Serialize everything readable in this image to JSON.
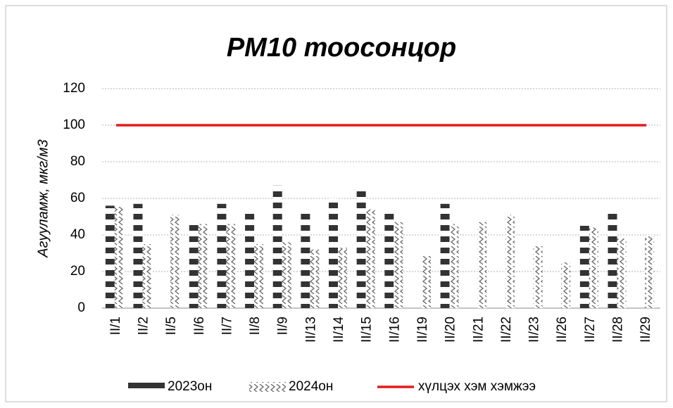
{
  "chart_data": {
    "type": "bar",
    "title": "PM10 тоосонцор",
    "y_label": "Агууламж,  мкг/м3",
    "categories": [
      "II/1",
      "II/2",
      "II/5",
      "II/6",
      "II/7",
      "II/8",
      "II/9",
      "II/13",
      "II/14",
      "II/15",
      "II/16",
      "II/19",
      "II/20",
      "II/21",
      "II/22",
      "II/23",
      "II/26",
      "II/27",
      "II/28",
      "II/29"
    ],
    "series": [
      {
        "name": "2023он",
        "type": "bar",
        "color": "#333333",
        "pattern": "checker",
        "values": [
          56,
          57,
          null,
          48,
          57,
          54,
          67,
          53,
          60,
          64,
          52,
          null,
          57,
          null,
          null,
          null,
          null,
          45,
          53,
          null
        ]
      },
      {
        "name": "2024он",
        "type": "bar",
        "color": "#555555",
        "pattern": "zigzag",
        "values": [
          56,
          35,
          51,
          46,
          46,
          35,
          36,
          32,
          33,
          54,
          47,
          29,
          46,
          47,
          51,
          34,
          25,
          44,
          38,
          40
        ]
      },
      {
        "name": "хүлцэх хэм хэмжээ",
        "type": "line",
        "color": "#e41a1c",
        "values": [
          100,
          100,
          100,
          100,
          100,
          100,
          100,
          100,
          100,
          100,
          100,
          100,
          100,
          100,
          100,
          100,
          100,
          100,
          100,
          100
        ]
      }
    ],
    "ylim": [
      0,
      120
    ],
    "yticks": [
      0,
      20,
      40,
      60,
      80,
      100,
      120
    ],
    "grid": true,
    "legend": "bottom"
  }
}
